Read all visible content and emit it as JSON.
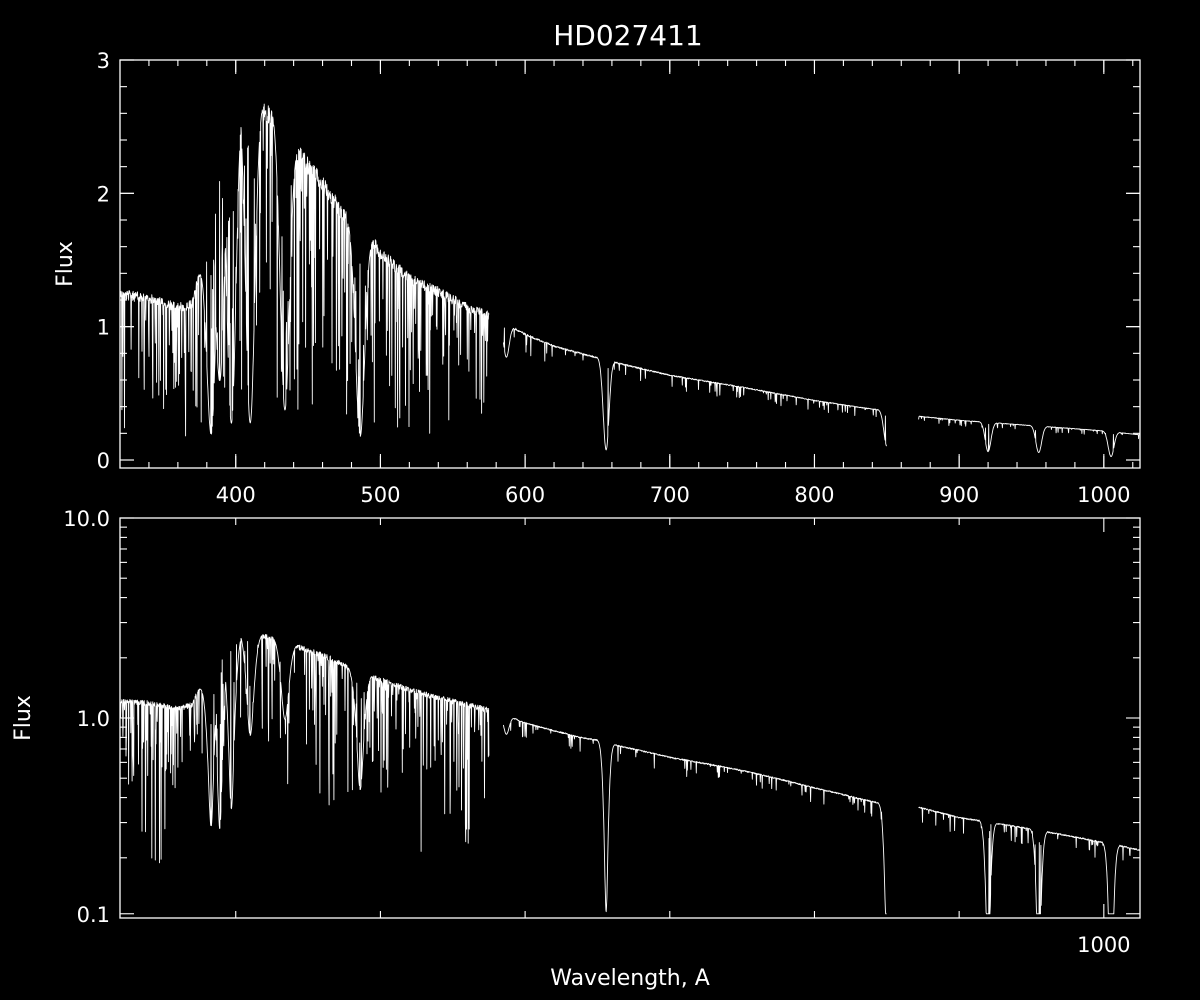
{
  "title": "HD027411",
  "chart_data": [
    {
      "type": "line",
      "scale": "linear",
      "ylabel": "Flux",
      "xlim": [
        320,
        1025
      ],
      "ylim": [
        -0.06,
        3.0
      ],
      "xticks": [
        400,
        500,
        600,
        700,
        800,
        900,
        1000
      ],
      "xtick_labels": [
        "400",
        "500",
        "600",
        "700",
        "800",
        "900",
        "1000"
      ],
      "yticks": [
        0,
        1,
        2,
        3
      ],
      "ytick_labels": [
        "0",
        "1",
        "2",
        "3"
      ],
      "series": [
        {
          "continuum": [
            [
              320,
              1.28
            ],
            [
              340,
              1.25
            ],
            [
              360,
              1.18
            ],
            [
              370,
              1.2
            ],
            [
              380,
              1.7
            ],
            [
              390,
              2.45
            ],
            [
              398,
              2.8
            ],
            [
              405,
              2.85
            ],
            [
              412,
              2.75
            ],
            [
              420,
              2.7
            ],
            [
              428,
              2.62
            ],
            [
              438,
              2.42
            ],
            [
              450,
              2.28
            ],
            [
              465,
              2.05
            ],
            [
              480,
              1.8
            ],
            [
              490,
              1.75
            ],
            [
              500,
              1.6
            ],
            [
              520,
              1.4
            ],
            [
              540,
              1.3
            ],
            [
              560,
              1.18
            ],
            [
              575,
              1.12
            ]
          ]
        },
        {
          "continuum": [
            [
              585,
              1.04
            ],
            [
              600,
              0.95
            ],
            [
              620,
              0.86
            ],
            [
              640,
              0.8
            ],
            [
              655,
              0.76
            ],
            [
              665,
              0.73
            ],
            [
              700,
              0.64
            ],
            [
              750,
              0.55
            ],
            [
              800,
              0.45
            ],
            [
              830,
              0.4
            ],
            [
              850,
              0.37
            ]
          ]
        },
        {
          "continuum": [
            [
              872,
              0.33
            ],
            [
              900,
              0.3
            ],
            [
              950,
              0.26
            ],
            [
              1000,
              0.22
            ],
            [
              1025,
              0.19
            ]
          ]
        }
      ],
      "absorption_lines": [
        [
          383,
          0.1
        ],
        [
          389,
          0.25
        ],
        [
          397,
          0.1
        ],
        [
          410,
          0.1
        ],
        [
          434,
          0.15
        ],
        [
          486,
          0.1
        ],
        [
          587,
          0.75
        ],
        [
          656,
          0.1
        ],
        [
          850,
          0.28
        ],
        [
          866,
          0.3
        ],
        [
          920,
          0.22
        ],
        [
          955,
          0.22
        ],
        [
          1005,
          0.12
        ]
      ]
    },
    {
      "type": "line",
      "scale": "log",
      "ylabel": "Flux",
      "xlabel": "Wavelength, A",
      "xlim": [
        320,
        1025
      ],
      "ylim": [
        0.1,
        10.0
      ],
      "xticks": [
        1000
      ],
      "xtick_labels": [
        "1000"
      ],
      "yticks": [
        0.1,
        1.0,
        10.0
      ],
      "ytick_labels": [
        "0.1",
        "1.0",
        "10.0"
      ],
      "series": [
        {
          "continuum": [
            [
              320,
              1.25
            ],
            [
              340,
              1.22
            ],
            [
              360,
              1.15
            ],
            [
              370,
              1.2
            ],
            [
              380,
              1.7
            ],
            [
              390,
              2.4
            ],
            [
              398,
              2.75
            ],
            [
              405,
              2.8
            ],
            [
              412,
              2.7
            ],
            [
              420,
              2.65
            ],
            [
              428,
              2.55
            ],
            [
              438,
              2.4
            ],
            [
              450,
              2.25
            ],
            [
              465,
              2.05
            ],
            [
              480,
              1.8
            ],
            [
              490,
              1.72
            ],
            [
              500,
              1.6
            ],
            [
              520,
              1.42
            ],
            [
              540,
              1.3
            ],
            [
              560,
              1.2
            ],
            [
              575,
              1.13
            ]
          ]
        },
        {
          "continuum": [
            [
              585,
              1.05
            ],
            [
              600,
              0.95
            ],
            [
              620,
              0.87
            ],
            [
              640,
              0.8
            ],
            [
              655,
              0.77
            ],
            [
              665,
              0.73
            ],
            [
              700,
              0.64
            ],
            [
              750,
              0.55
            ],
            [
              800,
              0.45
            ],
            [
              830,
              0.4
            ],
            [
              850,
              0.37
            ]
          ]
        },
        {
          "continuum": [
            [
              872,
              0.36
            ],
            [
              900,
              0.32
            ],
            [
              950,
              0.28
            ],
            [
              1000,
              0.24
            ],
            [
              1025,
              0.22
            ]
          ]
        }
      ],
      "absorption_lines": [
        [
          383,
          0.15
        ],
        [
          389,
          0.12
        ],
        [
          397,
          0.13
        ],
        [
          410,
          0.3
        ],
        [
          434,
          0.4
        ],
        [
          486,
          0.25
        ],
        [
          587,
          0.8
        ],
        [
          656,
          0.14
        ],
        [
          850,
          0.2
        ],
        [
          920,
          0.18
        ],
        [
          955,
          0.17
        ],
        [
          1005,
          0.13
        ]
      ]
    }
  ]
}
